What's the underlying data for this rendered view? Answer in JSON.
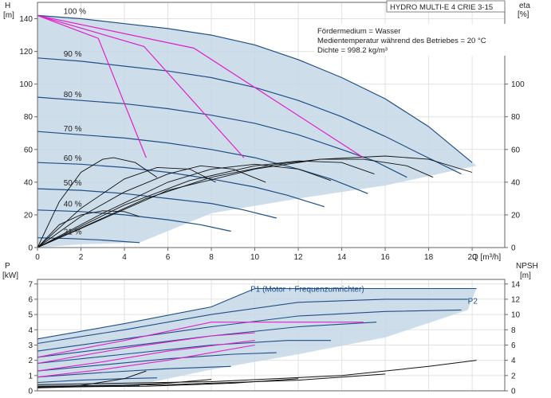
{
  "chart_data": [
    {
      "type": "line",
      "title": "HYDRO MULTI-E 4 CRIE 3-15",
      "info_lines": [
        "Fördermedium = Wasser",
        "Medientemperatur während des Betriebes = 20 °C",
        "Dichte = 998.2 kg/m³"
      ],
      "ylabel_left": "H",
      "ylabel_left_unit": "[m]",
      "ylabel_right": "eta",
      "ylabel_right_unit": "[%]",
      "xlabel": "Q [m³/h]",
      "xlim": [
        0,
        21.5
      ],
      "ylim": [
        0,
        150
      ],
      "xticks": [
        0,
        2,
        4,
        6,
        8,
        10,
        12,
        14,
        16,
        18,
        20
      ],
      "yticks_left": [
        0,
        20,
        40,
        60,
        80,
        100,
        120,
        140
      ],
      "yticks_right": [
        0,
        20,
        40,
        60,
        80,
        100
      ],
      "speed_labels": [
        {
          "text": "100 %",
          "q": 1.2,
          "h": 143
        },
        {
          "text": "90 %",
          "q": 1.2,
          "h": 117
        },
        {
          "text": "80 %",
          "q": 1.2,
          "h": 92
        },
        {
          "text": "70 %",
          "q": 1.2,
          "h": 71
        },
        {
          "text": "60 %",
          "q": 1.2,
          "h": 53
        },
        {
          "text": "50 %",
          "q": 1.2,
          "h": 38
        },
        {
          "text": "40 %",
          "q": 1.2,
          "h": 25
        },
        {
          "text": "21 %",
          "q": 1.2,
          "h": 8
        }
      ],
      "series": [
        {
          "speed": 100,
          "points": [
            [
              0,
              142
            ],
            [
              2,
              140
            ],
            [
              4,
              137
            ],
            [
              6,
              134
            ],
            [
              8,
              130
            ],
            [
              10,
              124
            ],
            [
              12,
              115
            ],
            [
              14,
              104
            ],
            [
              16,
              91
            ],
            [
              18,
              74
            ],
            [
              20,
              52
            ]
          ]
        },
        {
          "speed": 90,
          "points": [
            [
              0,
              116
            ],
            [
              2,
              114
            ],
            [
              4,
              111
            ],
            [
              6,
              108
            ],
            [
              8,
              104
            ],
            [
              10,
              98
            ],
            [
              12,
              90
            ],
            [
              14,
              80
            ],
            [
              16,
              68
            ],
            [
              17.5,
              58
            ],
            [
              19.5,
              45
            ]
          ]
        },
        {
          "speed": 80,
          "points": [
            [
              0,
              92
            ],
            [
              2,
              90
            ],
            [
              4,
              88
            ],
            [
              6,
              85
            ],
            [
              8,
              81
            ],
            [
              10,
              76
            ],
            [
              12,
              69
            ],
            [
              14,
              60
            ],
            [
              15.5,
              53
            ],
            [
              17,
              43
            ]
          ]
        },
        {
          "speed": 70,
          "points": [
            [
              0,
              71
            ],
            [
              2,
              69
            ],
            [
              4,
              67
            ],
            [
              6,
              64
            ],
            [
              8,
              60
            ],
            [
              10,
              55
            ],
            [
              12,
              48
            ],
            [
              13.5,
              42
            ],
            [
              15.2,
              33
            ]
          ]
        },
        {
          "speed": 60,
          "points": [
            [
              0,
              52
            ],
            [
              2,
              51
            ],
            [
              4,
              49
            ],
            [
              6,
              46
            ],
            [
              8,
              42
            ],
            [
              10,
              37
            ],
            [
              11.5,
              32
            ],
            [
              13.2,
              25
            ]
          ]
        },
        {
          "speed": 50,
          "points": [
            [
              0,
              36
            ],
            [
              2,
              35
            ],
            [
              4,
              33
            ],
            [
              6,
              30
            ],
            [
              8,
              27
            ],
            [
              9.5,
              23
            ],
            [
              11,
              18
            ]
          ]
        },
        {
          "speed": 40,
          "points": [
            [
              0,
              23
            ],
            [
              2,
              22
            ],
            [
              4,
              20
            ],
            [
              6,
              17
            ],
            [
              7.5,
              14
            ],
            [
              8.9,
              10
            ]
          ]
        },
        {
          "speed": 21,
          "points": [
            [
              0,
              6
            ],
            [
              1.5,
              5.5
            ],
            [
              3,
              4.6
            ],
            [
              4.7,
              3
            ]
          ]
        }
      ],
      "envelope": [
        [
          0,
          142
        ],
        [
          4,
          137
        ],
        [
          8,
          130
        ],
        [
          10,
          124
        ],
        [
          12,
          115
        ],
        [
          14,
          104
        ],
        [
          16,
          91
        ],
        [
          18,
          74
        ],
        [
          20.2,
          50
        ],
        [
          16,
          38
        ],
        [
          12,
          30
        ],
        [
          8,
          21
        ],
        [
          4.7,
          3
        ],
        [
          2,
          2
        ],
        [
          0,
          0
        ]
      ],
      "efficiency_curves": [
        {
          "points": [
            [
              0,
              0
            ],
            [
              1,
              28
            ],
            [
              2,
              46
            ],
            [
              3,
              54
            ],
            [
              3.5,
              55
            ],
            [
              4.5,
              52
            ],
            [
              5.5,
              43
            ]
          ]
        },
        {
          "points": [
            [
              0,
              0
            ],
            [
              2,
              24
            ],
            [
              4,
              42
            ],
            [
              5.5,
              49
            ],
            [
              7,
              48
            ],
            [
              8.2,
              40
            ]
          ]
        },
        {
          "points": [
            [
              0,
              0
            ],
            [
              2,
              19
            ],
            [
              4,
              34
            ],
            [
              6,
              45
            ],
            [
              7.5,
              50
            ],
            [
              9,
              48
            ],
            [
              10.5,
              40
            ]
          ]
        },
        {
          "points": [
            [
              0,
              0
            ],
            [
              3,
              21
            ],
            [
              6,
              40
            ],
            [
              8,
              48
            ],
            [
              10,
              51
            ],
            [
              12,
              48
            ],
            [
              13.5,
              41
            ]
          ]
        },
        {
          "points": [
            [
              0,
              0
            ],
            [
              4,
              26
            ],
            [
              7,
              41
            ],
            [
              10,
              50
            ],
            [
              12,
              53
            ],
            [
              14,
              52
            ],
            [
              15.5,
              45
            ]
          ]
        },
        {
          "points": [
            [
              0,
              0
            ],
            [
              5,
              30
            ],
            [
              8,
              43
            ],
            [
              11,
              51
            ],
            [
              13,
              54
            ],
            [
              15,
              54
            ],
            [
              17,
              50
            ],
            [
              18.2,
              43
            ]
          ]
        },
        {
          "points": [
            [
              0,
              0
            ],
            [
              6,
              35
            ],
            [
              10,
              48
            ],
            [
              13,
              54
            ],
            [
              16,
              56
            ],
            [
              18,
              54
            ],
            [
              20,
              46
            ]
          ]
        },
        {
          "points": [
            [
              0,
              0
            ],
            [
              1,
              14
            ],
            [
              2,
              20
            ],
            [
              3,
              22.5
            ],
            [
              4,
              22
            ],
            [
              4.7,
              19
            ]
          ]
        }
      ],
      "best_efficiency_lines": [
        {
          "points": [
            [
              0,
              142
            ],
            [
              2.8,
              128
            ],
            [
              5,
              55
            ]
          ]
        },
        {
          "points": [
            [
              0,
              142
            ],
            [
              4.9,
              123
            ],
            [
              9.5,
              55
            ]
          ]
        },
        {
          "points": [
            [
              0,
              142
            ],
            [
              7.2,
              122
            ],
            [
              15,
              55
            ]
          ]
        }
      ]
    },
    {
      "type": "line",
      "ylabel_left": "P",
      "ylabel_left_unit": "[kW]",
      "ylabel_right": "NPSH",
      "ylabel_right_unit": "[m]",
      "xlim": [
        0,
        21.5
      ],
      "ylim": [
        0,
        7.3
      ],
      "yticks_left": [
        0,
        1,
        2,
        3,
        4,
        5,
        6,
        7
      ],
      "yticks_right": [
        0,
        2,
        4,
        6,
        8,
        10,
        12,
        14
      ],
      "legend_labels": [
        {
          "text": "P1 (Motor + Frequenzumrichter)",
          "q": 9.8,
          "p": 6.5
        },
        {
          "text": "P2",
          "q": 19.8,
          "p": 5.7
        }
      ],
      "series": [
        {
          "name": "P1 (Motor + Frequenzumrichter)",
          "points": [
            [
              0,
              3.4
            ],
            [
              4,
              4.4
            ],
            [
              8,
              5.5
            ],
            [
              10,
              6.7
            ],
            [
              20.2,
              6.7
            ]
          ]
        },
        {
          "name": "P2",
          "points": [
            [
              0,
              3.1
            ],
            [
              4,
              4.0
            ],
            [
              8,
              5.0
            ],
            [
              12,
              5.8
            ],
            [
              16,
              6.0
            ],
            [
              19.8,
              6.0
            ]
          ]
        },
        {
          "name": "",
          "points": [
            [
              0,
              2.6
            ],
            [
              4,
              3.4
            ],
            [
              8,
              4.2
            ],
            [
              12,
              4.9
            ],
            [
              16,
              5.2
            ],
            [
              19.5,
              5.3
            ]
          ]
        },
        {
          "name": "",
          "points": [
            [
              0,
              2.2
            ],
            [
              4,
              2.9
            ],
            [
              8,
              3.6
            ],
            [
              12,
              4.2
            ],
            [
              15.6,
              4.5
            ]
          ]
        },
        {
          "name": "",
          "points": [
            [
              0,
              1.8
            ],
            [
              4,
              2.4
            ],
            [
              8,
              3.0
            ],
            [
              11.5,
              3.3
            ],
            [
              13.5,
              3.3
            ]
          ]
        },
        {
          "name": "",
          "points": [
            [
              0,
              1.3
            ],
            [
              3,
              1.7
            ],
            [
              6,
              2.1
            ],
            [
              9,
              2.4
            ],
            [
              11,
              2.5
            ]
          ]
        },
        {
          "name": "",
          "points": [
            [
              0,
              0.9
            ],
            [
              3,
              1.2
            ],
            [
              6,
              1.45
            ],
            [
              8.9,
              1.6
            ]
          ]
        },
        {
          "name": "",
          "points": [
            [
              0,
              0.55
            ],
            [
              2,
              0.7
            ],
            [
              4,
              0.8
            ],
            [
              5.5,
              0.85
            ]
          ]
        },
        {
          "name": "",
          "points": [
            [
              0,
              0.25
            ],
            [
              2,
              0.3
            ],
            [
              4.7,
              0.33
            ]
          ]
        }
      ],
      "magenta_series": [
        {
          "points": [
            [
              0,
              2.2
            ],
            [
              4,
              3.3
            ],
            [
              8,
              4.5
            ],
            [
              15,
              4.5
            ]
          ]
        },
        {
          "points": [
            [
              0,
              1.8
            ],
            [
              4,
              2.8
            ],
            [
              8,
              3.6
            ],
            [
              10,
              3.8
            ]
          ]
        },
        {
          "points": [
            [
              0,
              1.3
            ],
            [
              3,
              1.9
            ],
            [
              6,
              2.6
            ],
            [
              10,
              3.3
            ]
          ]
        },
        {
          "points": [
            [
              0,
              0.9
            ],
            [
              3,
              1.4
            ],
            [
              6,
              2.0
            ],
            [
              10,
              3.0
            ]
          ]
        }
      ],
      "npsh_curves": [
        {
          "points": [
            [
              0,
              0.4
            ],
            [
              8,
              0.6
            ],
            [
              14,
              1.0
            ],
            [
              18,
              1.6
            ],
            [
              20.2,
              2.0
            ]
          ]
        },
        {
          "points": [
            [
              0,
              0.3
            ],
            [
              6,
              0.4
            ],
            [
              12,
              0.7
            ],
            [
              16,
              1.1
            ]
          ]
        },
        {
          "points": [
            [
              0,
              0.25
            ],
            [
              5,
              0.3
            ],
            [
              9,
              0.5
            ],
            [
              12,
              0.8
            ]
          ]
        },
        {
          "points": [
            [
              0,
              0.2
            ],
            [
              3,
              0.3
            ],
            [
              6,
              0.5
            ],
            [
              8,
              0.75
            ]
          ]
        },
        {
          "points": [
            [
              0,
              0.2
            ],
            [
              2,
              0.35
            ],
            [
              4,
              0.8
            ],
            [
              5,
              1.3
            ]
          ]
        }
      ],
      "envelope": [
        [
          0,
          3.4
        ],
        [
          4,
          4.4
        ],
        [
          8,
          5.5
        ],
        [
          10,
          6.7
        ],
        [
          20.2,
          6.7
        ],
        [
          19.8,
          5.3
        ],
        [
          16,
          3.5
        ],
        [
          12,
          2.4
        ],
        [
          8,
          1.4
        ],
        [
          4.7,
          0.4
        ],
        [
          0,
          0.2
        ]
      ]
    }
  ]
}
